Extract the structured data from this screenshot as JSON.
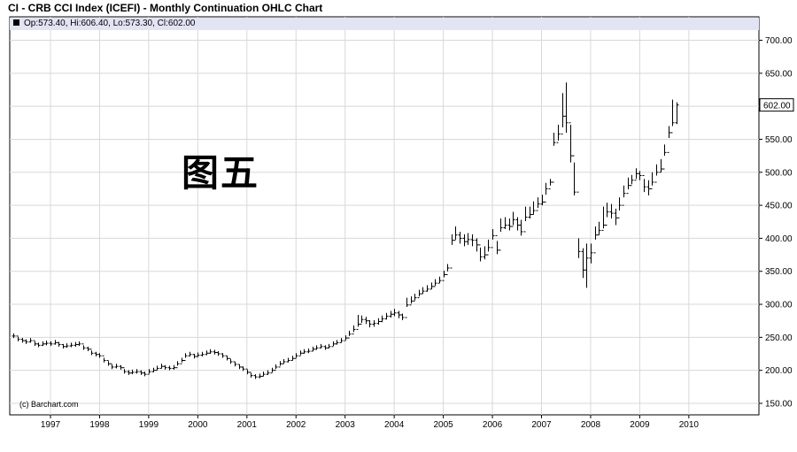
{
  "header": {
    "title": "CI - CRB CCI Index (ICEFI) - Monthly Continuation OHLC Chart"
  },
  "ohlc_readout": {
    "text": "Op:573.40, Hi:606.40, Lo:573.30, Cl:602.00"
  },
  "watermark": {
    "text": "图五"
  },
  "credit": {
    "text": "(c) Barchart.com"
  },
  "colors": {
    "background": "#ffffff",
    "grid": "#d8d8d8",
    "bars": "#000000",
    "readout_bg": "#e2e4f4",
    "last_price_box": "#ffffff"
  },
  "chart_data": {
    "type": "ohlc",
    "interval": "monthly",
    "ylim": [
      140,
      715
    ],
    "y_ticks": [
      "700.00",
      "650.00",
      "600.00",
      "550.00",
      "500.00",
      "450.00",
      "400.00",
      "350.00",
      "300.00",
      "250.00",
      "200.00",
      "150.00"
    ],
    "y_tick_values": [
      700,
      650,
      600,
      550,
      500,
      450,
      400,
      350,
      300,
      250,
      200,
      150
    ],
    "x_ticks": [
      "1997",
      "1998",
      "1999",
      "2000",
      "2001",
      "2002",
      "2003",
      "2004",
      "2005",
      "2006",
      "2007",
      "2008",
      "2009",
      "2010"
    ],
    "last_price_label": "602.00",
    "last_price": 602.0,
    "grid": true,
    "y_axis_side": "right",
    "start_month": "1996-04",
    "close": [
      252,
      247,
      245,
      243,
      245,
      240,
      238,
      240,
      241,
      240,
      242,
      239,
      236,
      237,
      238,
      239,
      240,
      234,
      232,
      226,
      224,
      222,
      215,
      210,
      205,
      206,
      204,
      198,
      196,
      197,
      198,
      196,
      194,
      198,
      200,
      203,
      206,
      204,
      203,
      204,
      210,
      215,
      222,
      224,
      221,
      223,
      224,
      226,
      228,
      227,
      225,
      222,
      218,
      213,
      209,
      205,
      202,
      197,
      192,
      190,
      191,
      194,
      196,
      200,
      205,
      210,
      213,
      215,
      218,
      222,
      226,
      228,
      229,
      232,
      234,
      236,
      234,
      236,
      240,
      242,
      245,
      249,
      255,
      262,
      270,
      277,
      275,
      270,
      271,
      274,
      278,
      282,
      285,
      287,
      284,
      280,
      299,
      305,
      310,
      316,
      320,
      323,
      327,
      332,
      336,
      345,
      355,
      397,
      405,
      400,
      395,
      398,
      397,
      390,
      372,
      375,
      386,
      404,
      382,
      416,
      420,
      418,
      428,
      420,
      410,
      432,
      436,
      442,
      452,
      455,
      475,
      485,
      545,
      558,
      585,
      575,
      525,
      470,
      380,
      352,
      370,
      378,
      405,
      412,
      420,
      440,
      438,
      431,
      450,
      468,
      480,
      488,
      498,
      495,
      478,
      475,
      485,
      500,
      505,
      530,
      560,
      575,
      602
    ],
    "high": [
      256,
      251,
      249,
      247,
      249,
      244,
      242,
      244,
      245,
      244,
      246,
      243,
      240,
      241,
      242,
      243,
      244,
      238,
      236,
      230,
      228,
      226,
      219,
      214,
      209,
      210,
      208,
      202,
      200,
      201,
      202,
      200,
      198,
      202,
      204,
      207,
      210,
      208,
      207,
      208,
      214,
      219,
      226,
      228,
      225,
      227,
      228,
      230,
      232,
      231,
      229,
      226,
      222,
      217,
      213,
      209,
      206,
      201,
      196,
      194,
      195,
      198,
      200,
      204,
      209,
      214,
      217,
      219,
      222,
      226,
      230,
      232,
      233,
      236,
      238,
      240,
      238,
      240,
      244,
      246,
      249,
      253,
      260,
      268,
      284,
      283,
      281,
      276,
      276,
      279,
      283,
      287,
      290,
      293,
      290,
      286,
      310,
      312,
      316,
      322,
      326,
      329,
      333,
      338,
      342,
      351,
      361,
      406,
      418,
      410,
      406,
      408,
      406,
      400,
      386,
      388,
      398,
      414,
      396,
      430,
      432,
      430,
      440,
      432,
      428,
      448,
      448,
      456,
      462,
      466,
      484,
      490,
      560,
      572,
      620,
      636,
      572,
      515,
      400,
      385,
      392,
      392,
      418,
      425,
      448,
      454,
      452,
      445,
      462,
      480,
      492,
      496,
      506,
      502,
      490,
      488,
      500,
      512,
      520,
      542,
      570,
      610,
      606
    ],
    "low": [
      249,
      244,
      242,
      240,
      242,
      237,
      235,
      237,
      238,
      237,
      239,
      236,
      233,
      234,
      235,
      236,
      237,
      231,
      229,
      223,
      221,
      219,
      212,
      207,
      202,
      203,
      201,
      195,
      193,
      194,
      195,
      193,
      191,
      195,
      197,
      200,
      203,
      201,
      200,
      201,
      207,
      212,
      219,
      221,
      218,
      220,
      221,
      223,
      225,
      224,
      222,
      219,
      215,
      210,
      206,
      202,
      199,
      194,
      189,
      187,
      188,
      191,
      193,
      197,
      202,
      207,
      210,
      212,
      215,
      219,
      223,
      225,
      226,
      229,
      231,
      233,
      231,
      233,
      237,
      239,
      242,
      246,
      252,
      258,
      266,
      272,
      270,
      265,
      266,
      269,
      273,
      277,
      280,
      282,
      279,
      276,
      296,
      301,
      306,
      312,
      316,
      319,
      323,
      328,
      332,
      341,
      350,
      390,
      398,
      392,
      388,
      390,
      388,
      380,
      365,
      368,
      380,
      398,
      376,
      410,
      414,
      412,
      420,
      412,
      404,
      426,
      430,
      436,
      446,
      450,
      466,
      480,
      540,
      548,
      568,
      560,
      515,
      465,
      370,
      340,
      325,
      362,
      398,
      405,
      415,
      432,
      430,
      420,
      442,
      462,
      474,
      482,
      490,
      488,
      470,
      465,
      480,
      495,
      500,
      525,
      552,
      570,
      573
    ]
  }
}
